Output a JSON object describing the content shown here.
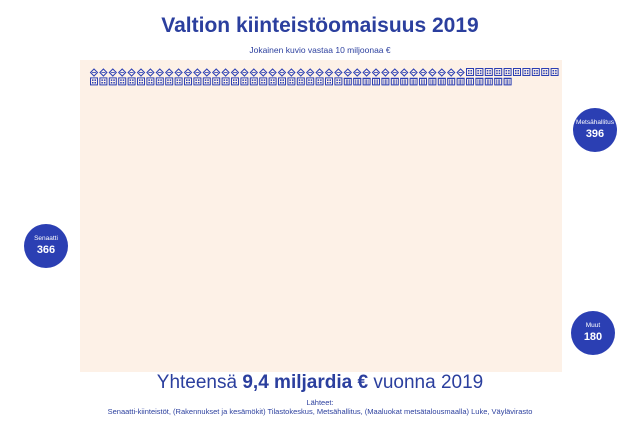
{
  "title": "Valtion kiinteistöomaisuus 2019",
  "subtitle": "Jokainen kuvio vastaa 10 miljoonaa €",
  "total": {
    "prefix": "Yhteensä ",
    "highlight": "9,4 miljardia €",
    "suffix": " vuonna 2019"
  },
  "sources_label": "Lähteet:",
  "sources_text": "Senaatti-kiinteistöt, (Rakennukset ja kesämökit) Tilastokeskus, Metsähallitus,  (Maaluokat metsätalousmaalla) Luke, Väylävirasto",
  "colors": {
    "accent": "#2b3fb3",
    "panel": "#fdf1e7",
    "text": "#2b3f9e"
  },
  "chart_data": {
    "type": "pictogram",
    "unit_value": 10,
    "unit_label": "miljoonaa €",
    "series": [
      {
        "name": "Metsähallitus",
        "label": "Metsähallitus",
        "value": 396,
        "icon": "forest-land-icon"
      },
      {
        "name": "Senaatti",
        "label": "Senaatti",
        "value": 366,
        "icon": "office-building-icon"
      },
      {
        "name": "Muut",
        "label": "Muut",
        "value": 180,
        "icon": "apartment-building-icon"
      }
    ]
  }
}
